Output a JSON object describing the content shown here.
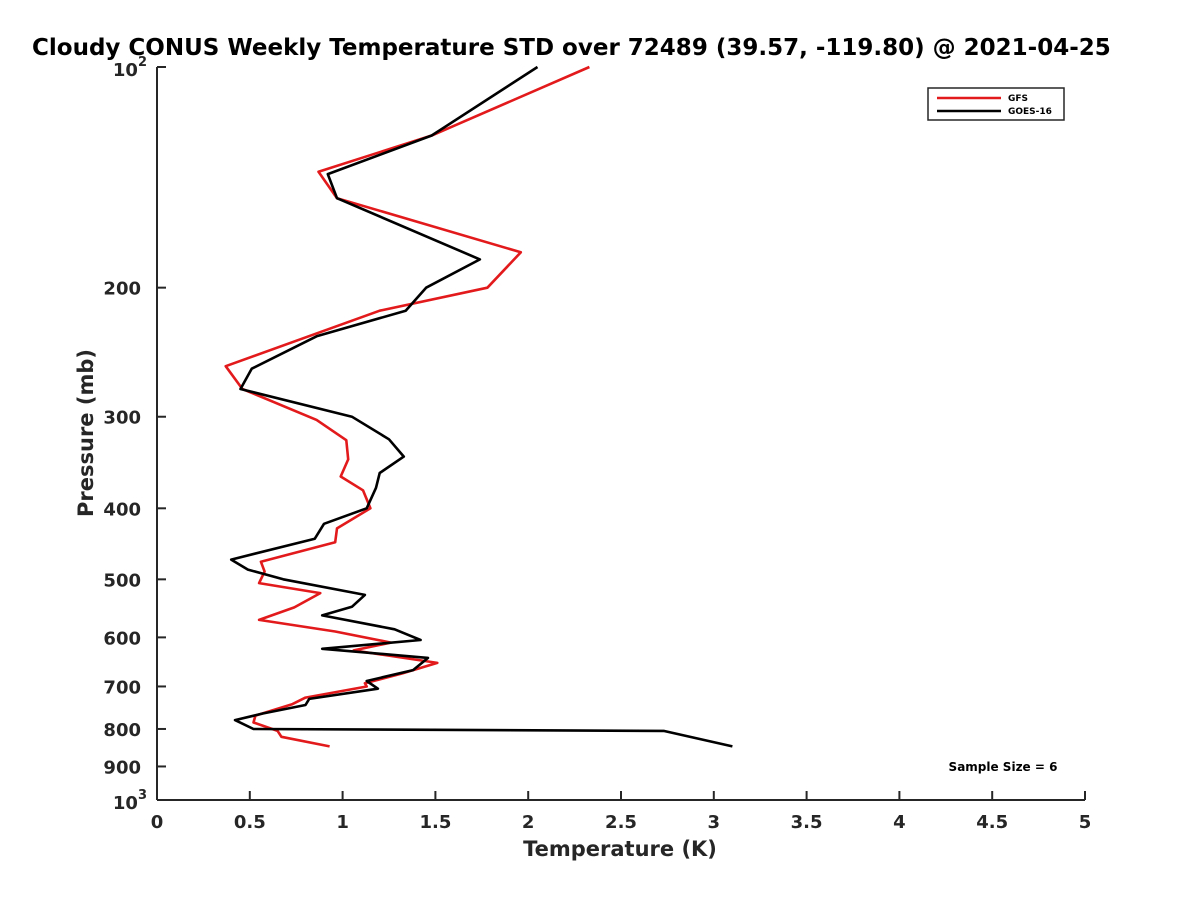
{
  "chart_data": {
    "type": "line",
    "title": "Cloudy CONUS Weekly Temperature STD over 72489 (39.57, -119.80) @ 2021-04-25",
    "xlabel": "Temperature (K)",
    "ylabel": "Pressure (mb)",
    "xlim": [
      0,
      5
    ],
    "ylim": [
      100,
      1000
    ],
    "y_scale": "log",
    "y_reversed": true,
    "grid": false,
    "legend_position": "top-right",
    "x_ticks": [
      0,
      0.5,
      1,
      1.5,
      2,
      2.5,
      3,
      3.5,
      4,
      4.5,
      5
    ],
    "x_tick_labels": [
      "0",
      "0.5",
      "1",
      "1.5",
      "2",
      "2.5",
      "3",
      "3.5",
      "4",
      "4.5",
      "5"
    ],
    "y_ticks": [
      {
        "value": 100,
        "label": "10",
        "exp": "2"
      },
      {
        "value": 200,
        "label": "200",
        "exp": ""
      },
      {
        "value": 300,
        "label": "300",
        "exp": ""
      },
      {
        "value": 400,
        "label": "400",
        "exp": ""
      },
      {
        "value": 500,
        "label": "500",
        "exp": ""
      },
      {
        "value": 600,
        "label": "600",
        "exp": ""
      },
      {
        "value": 700,
        "label": "700",
        "exp": ""
      },
      {
        "value": 800,
        "label": "800",
        "exp": ""
      },
      {
        "value": 900,
        "label": "900",
        "exp": ""
      },
      {
        "value": 1000,
        "label": "10",
        "exp": "3"
      }
    ],
    "series": [
      {
        "name": "GFS",
        "color": "#e31a1c",
        "points": [
          [
            2.33,
            100
          ],
          [
            1.48,
            124
          ],
          [
            0.87,
            139
          ],
          [
            0.97,
            151
          ],
          [
            1.96,
            179
          ],
          [
            1.78,
            200
          ],
          [
            1.2,
            215
          ],
          [
            0.37,
            256
          ],
          [
            0.46,
            275
          ],
          [
            0.86,
            303
          ],
          [
            1.02,
            323
          ],
          [
            1.03,
            343
          ],
          [
            0.99,
            362
          ],
          [
            1.11,
            378
          ],
          [
            1.15,
            400
          ],
          [
            0.97,
            426
          ],
          [
            0.96,
            445
          ],
          [
            0.56,
            473
          ],
          [
            0.58,
            488
          ],
          [
            0.55,
            506
          ],
          [
            0.88,
            522
          ],
          [
            0.74,
            546
          ],
          [
            0.55,
            568
          ],
          [
            0.96,
            589
          ],
          [
            1.26,
            610
          ],
          [
            1.06,
            625
          ],
          [
            1.51,
            650
          ],
          [
            1.32,
            672
          ],
          [
            1.12,
            693
          ],
          [
            1.13,
            700
          ],
          [
            0.8,
            725
          ],
          [
            0.73,
            740
          ],
          [
            0.53,
            767
          ],
          [
            0.52,
            784
          ],
          [
            0.65,
            805
          ],
          [
            0.67,
            820
          ],
          [
            0.93,
            845
          ]
        ]
      },
      {
        "name": "GOES-16",
        "color": "#000000",
        "points": [
          [
            2.05,
            100
          ],
          [
            1.48,
            124
          ],
          [
            0.92,
            140
          ],
          [
            0.97,
            151
          ],
          [
            1.74,
            183
          ],
          [
            1.45,
            200
          ],
          [
            1.34,
            215
          ],
          [
            0.86,
            233
          ],
          [
            0.51,
            258
          ],
          [
            0.45,
            275
          ],
          [
            1.05,
            300
          ],
          [
            1.25,
            322
          ],
          [
            1.33,
            340
          ],
          [
            1.2,
            358
          ],
          [
            1.18,
            375
          ],
          [
            1.13,
            400
          ],
          [
            0.9,
            420
          ],
          [
            0.85,
            440
          ],
          [
            0.4,
            470
          ],
          [
            0.49,
            485
          ],
          [
            0.68,
            500
          ],
          [
            1.12,
            525
          ],
          [
            1.05,
            545
          ],
          [
            0.89,
            560
          ],
          [
            1.28,
            585
          ],
          [
            1.42,
            605
          ],
          [
            0.89,
            622
          ],
          [
            1.46,
            640
          ],
          [
            1.38,
            665
          ],
          [
            1.13,
            688
          ],
          [
            1.19,
            705
          ],
          [
            0.82,
            728
          ],
          [
            0.8,
            742
          ],
          [
            0.57,
            762
          ],
          [
            0.42,
            778
          ],
          [
            0.52,
            800
          ],
          [
            2.73,
            805
          ],
          [
            3.1,
            845
          ]
        ]
      }
    ],
    "annotation": "Sample Size = 6"
  }
}
